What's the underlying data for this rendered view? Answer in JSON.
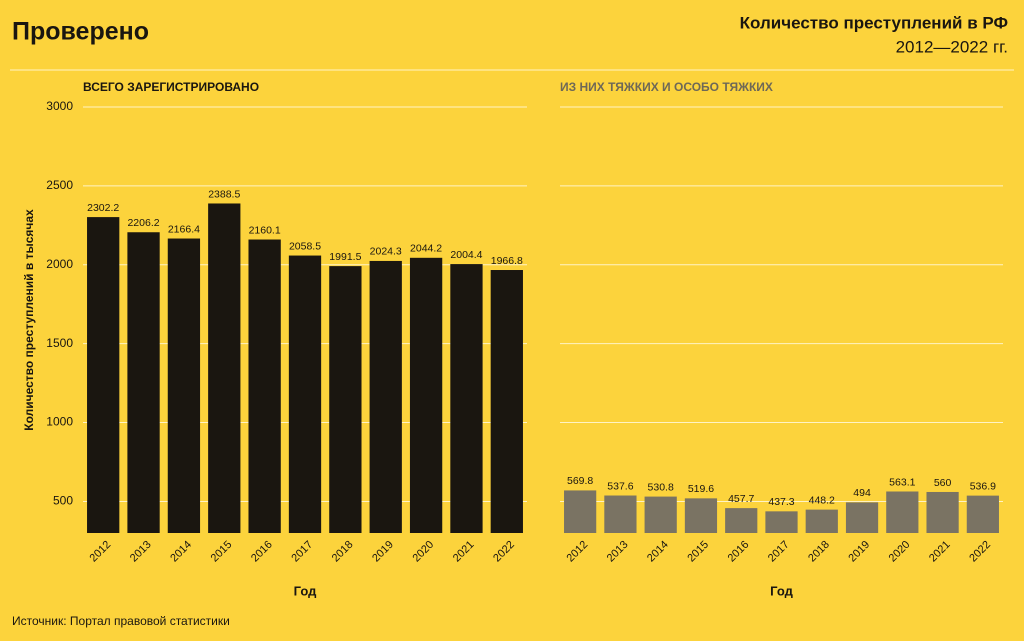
{
  "header": {
    "logo": "Проверено",
    "title": "Количество преступлений в РФ",
    "subtitle": "2012—2022 гг."
  },
  "source": "Источник: Портал правовой статистики",
  "chart_data": [
    {
      "type": "bar",
      "title": "ВСЕГО ЗАРЕГИСТРИРОВАНО",
      "x_label": "Год",
      "y_label": "Количество преступлений в тысячах",
      "categories": [
        "2012",
        "2013",
        "2014",
        "2015",
        "2016",
        "2017",
        "2018",
        "2019",
        "2020",
        "2021",
        "2022"
      ],
      "values": [
        2302.2,
        2206.2,
        2166.4,
        2388.5,
        2160.1,
        2058.5,
        1991.5,
        2024.3,
        2044.2,
        2004.4,
        1966.8
      ],
      "color": "#1a1610",
      "ylim": [
        300,
        3000
      ],
      "yticks": [
        500,
        1000,
        1500,
        2000,
        2500,
        3000
      ],
      "grid": true
    },
    {
      "type": "bar",
      "title": "ИЗ НИХ ТЯЖКИХ И ОСОБО ТЯЖКИХ",
      "x_label": "Год",
      "categories": [
        "2012",
        "2013",
        "2014",
        "2015",
        "2016",
        "2017",
        "2018",
        "2019",
        "2020",
        "2021",
        "2022"
      ],
      "values": [
        569.8,
        537.6,
        530.8,
        519.6,
        457.7,
        437.3,
        448.2,
        494,
        563.1,
        560,
        536.9
      ],
      "color": "#7a7363",
      "ylim": [
        300,
        3000
      ],
      "grid": true
    }
  ]
}
